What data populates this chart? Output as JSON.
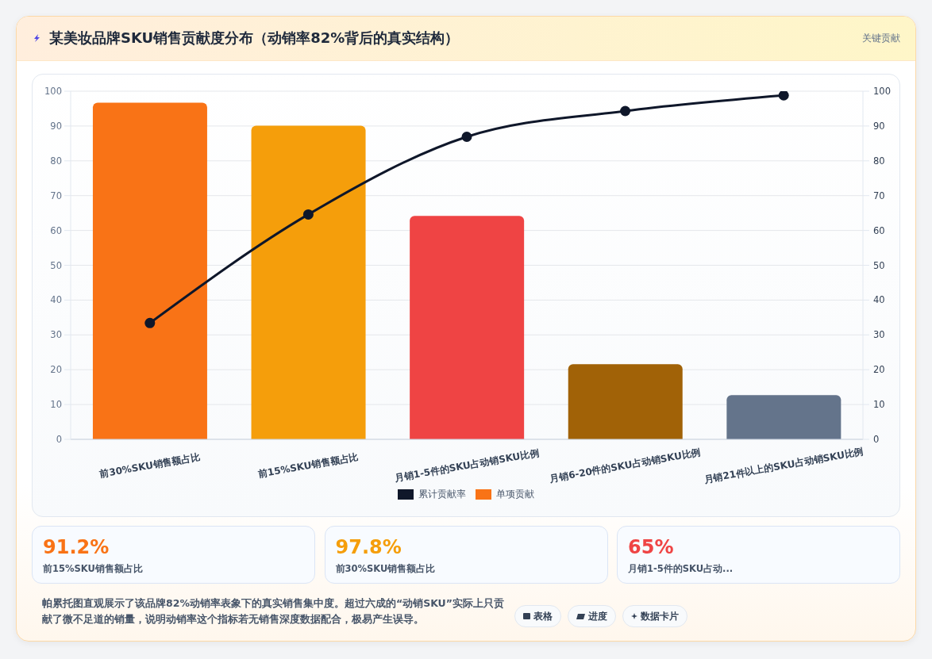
{
  "chart_data": {
    "type": "bar",
    "title": "某美妆品牌SKU销售贡献度分布（动销率82%背后的真实结构）",
    "categories": [
      "前30%SKU销售额占比",
      "前15%SKU销售额占比",
      "月销1-5件的SKU占动销SKU比例",
      "月销6-20件的SKU占动销SKU比例",
      "月销21件以上的SKU占动销SKU比例"
    ],
    "series": [
      {
        "name": "累计贡献率",
        "type": "line",
        "axis": "y2",
        "color": "#0f172a",
        "values": [
          33.4,
          64.6,
          86.9,
          94.3,
          98.8
        ]
      },
      {
        "name": "单项贡献",
        "color": "#f97316",
        "colors": [
          "#f97316",
          "#f59e0b",
          "#ef4444",
          "#a16207",
          "#64748b"
        ],
        "values": [
          96.7,
          90.1,
          64.2,
          21.6,
          12.7
        ]
      }
    ],
    "ylim": [
      0,
      100
    ],
    "yticks": [
      0,
      10,
      20,
      30,
      40,
      50,
      60,
      70,
      80,
      90,
      100
    ],
    "y2lim": [
      0,
      100
    ],
    "y2ticks": [
      0,
      10,
      20,
      30,
      40,
      50,
      60,
      70,
      80,
      90,
      100
    ],
    "grid": "y",
    "legend": "bottom",
    "marker": "circle",
    "line_style": "solid",
    "annotations": [
      "关键贡献",
      "91.2%",
      "前15%SKU销售额占比",
      "97.8%",
      "前30%SKU销售额占比",
      "65%",
      "月销1-5件的SKU占动...",
      "帕累托图直观展示了该品牌82%动销率表象下的真实销售集中度。超过六成的“动销SKU”实际上只贡献了微不足道的销量，说明动销率这个指标若无销售深度数据配合，极易产生误导。",
      "表格",
      "进度",
      "数据卡片"
    ]
  }
}
